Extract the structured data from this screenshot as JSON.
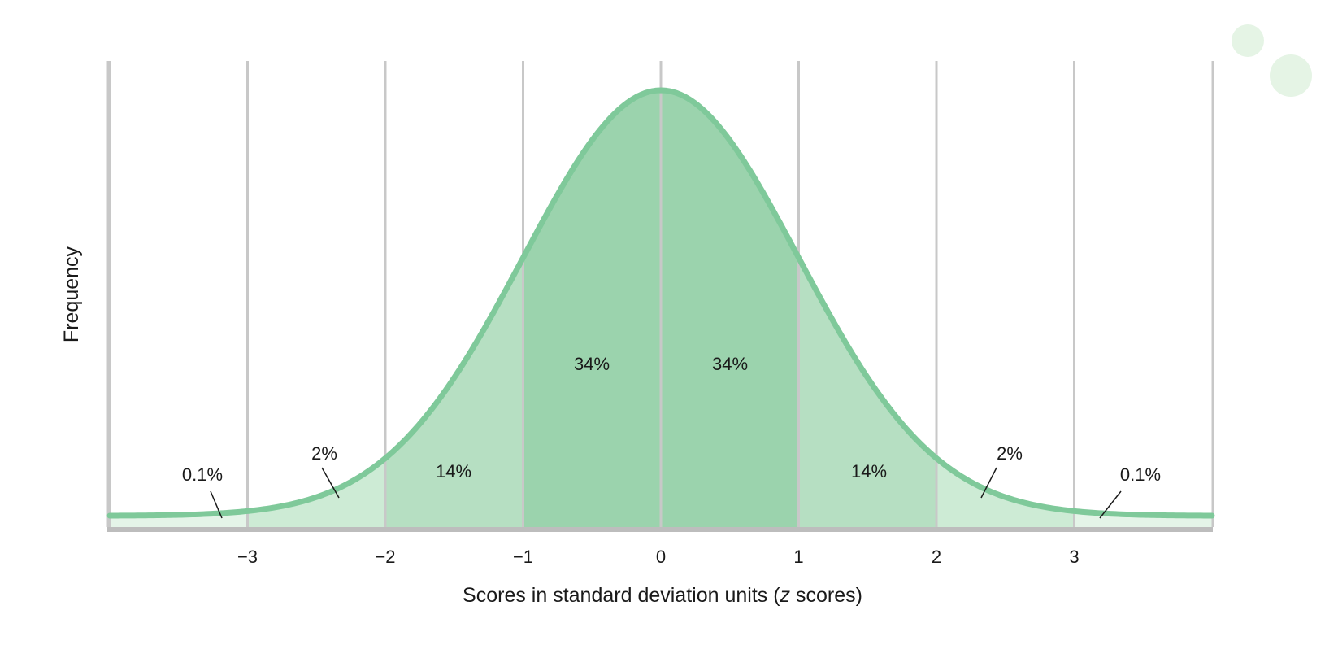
{
  "chart_data": {
    "type": "area",
    "distribution": "normal",
    "mean": 0,
    "sd": 1,
    "xlim": [
      -4,
      4
    ],
    "xlabel_parts": [
      "Scores in standard deviation units (",
      "z",
      " scores)"
    ],
    "ylabel": "Frequency",
    "grid": true,
    "x_ticks": [
      -3,
      -2,
      -1,
      0,
      1,
      2,
      3
    ],
    "x_tick_labels": [
      "−3",
      "−2",
      "−1",
      "0",
      "1",
      "2",
      "3"
    ],
    "regions": [
      {
        "from": -4,
        "to": -3,
        "percent": "0.1%",
        "shade": "lightest"
      },
      {
        "from": -3,
        "to": -2,
        "percent": "2%",
        "shade": "light"
      },
      {
        "from": -2,
        "to": -1,
        "percent": "14%",
        "shade": "medium"
      },
      {
        "from": -1,
        "to": 0,
        "percent": "34%",
        "shade": "dark"
      },
      {
        "from": 0,
        "to": 1,
        "percent": "34%",
        "shade": "dark"
      },
      {
        "from": 1,
        "to": 2,
        "percent": "14%",
        "shade": "medium"
      },
      {
        "from": 2,
        "to": 3,
        "percent": "2%",
        "shade": "light"
      },
      {
        "from": 3,
        "to": 4,
        "percent": "0.1%",
        "shade": "lightest"
      }
    ],
    "colors": {
      "curve": "#7fc99a",
      "dark": "#9bd3ad",
      "medium": "#b6dfc2",
      "light": "#cdebd5",
      "lightest": "#e4f4e8",
      "grid": "#c8c8c8",
      "decor_circle": "#e5f4e5"
    }
  }
}
